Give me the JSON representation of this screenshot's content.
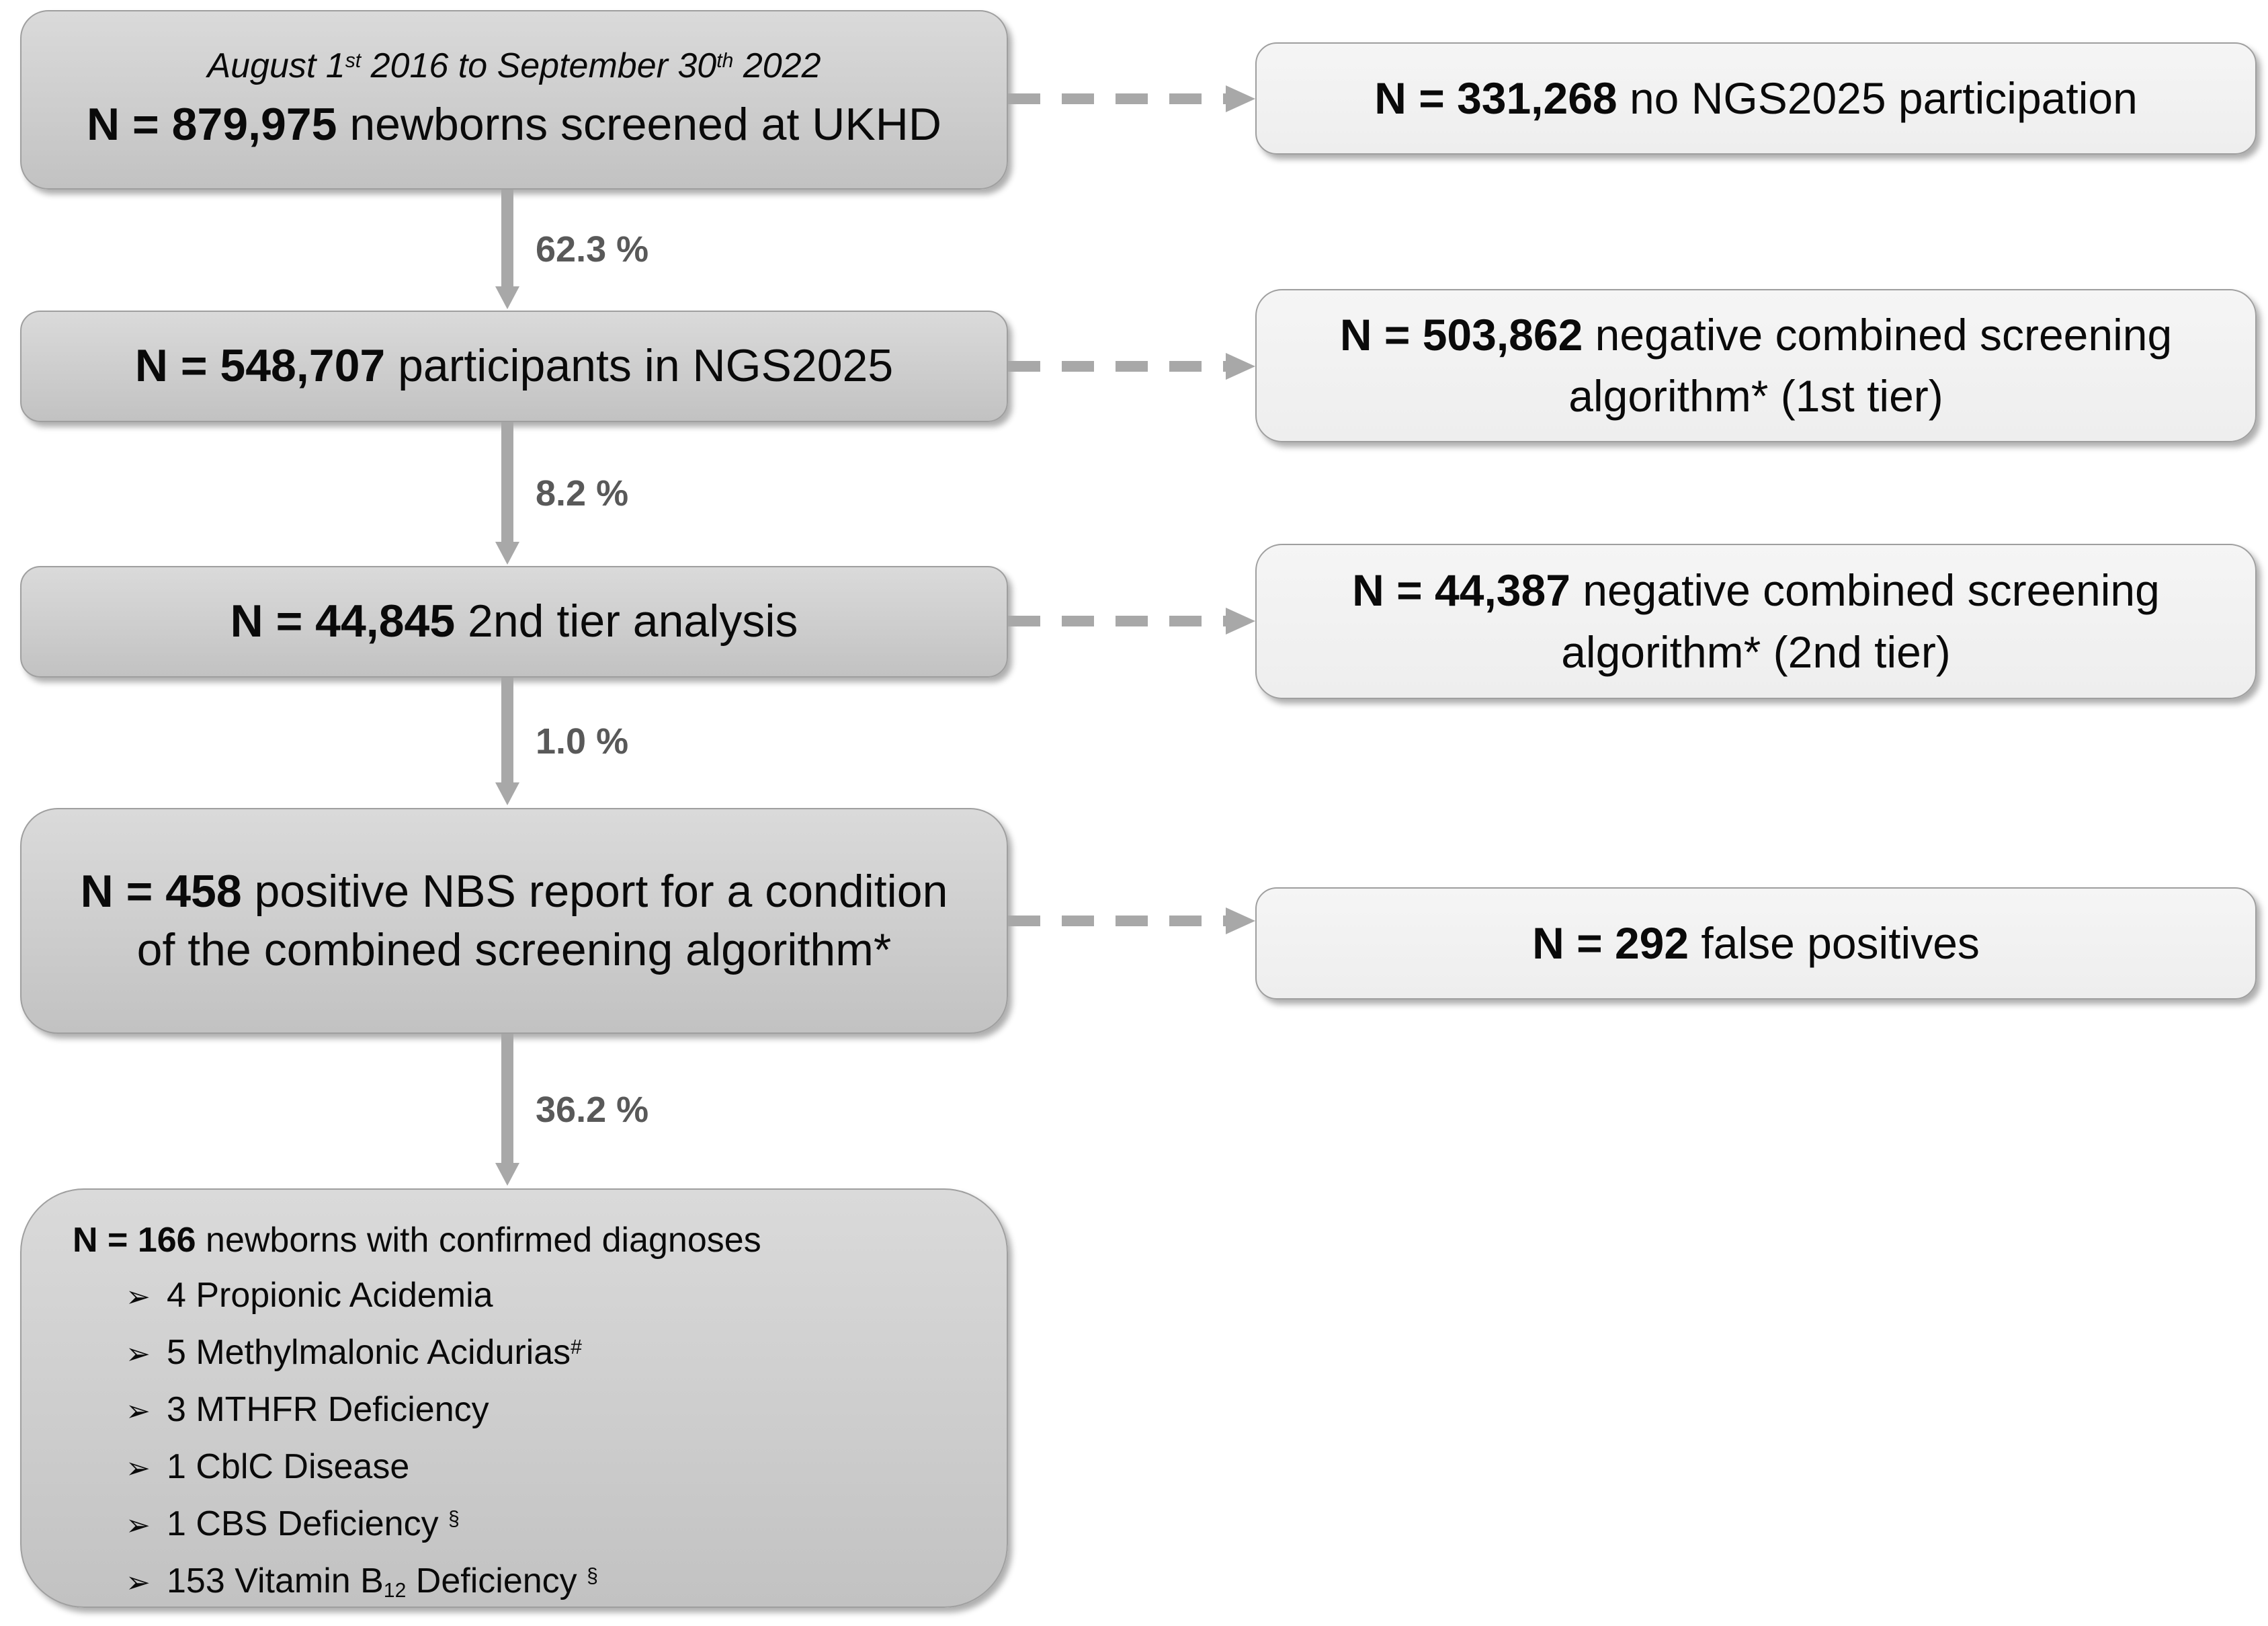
{
  "main_flow": {
    "screened": {
      "period": {
        "t1": "August 1",
        "sup1": "st",
        "t2": " 2016 to September 30",
        "sup2": "th",
        "t3": " 2022"
      },
      "n": "N = 879,975",
      "label": " newborns screened at UKHD"
    },
    "participants": {
      "n": "N = 548,707",
      "label": " participants in NGS2025"
    },
    "second_tier": {
      "n": "N = 44,845",
      "label": " 2nd tier analysis"
    },
    "positive_nbs": {
      "n": "N = 458",
      "label": " positive NBS report for a condition of the combined screening algorithm*"
    },
    "diagnoses": {
      "n": "N = 166",
      "label": " newborns with confirmed diagnoses",
      "bullet_glyph": "➢",
      "items": [
        {
          "text": "4 Propionic Acidemia"
        },
        {
          "text": "5 Methylmalonic Acidurias",
          "sup": "#"
        },
        {
          "text": "3 MTHFR Deficiency"
        },
        {
          "text": "1 CblC Disease"
        },
        {
          "text": "1 CBS Deficiency ",
          "sup": "§"
        },
        {
          "text": "153 Vitamin B",
          "sub": "12",
          "text2": " Deficiency ",
          "sup": "§"
        }
      ]
    }
  },
  "down_arrows": [
    {
      "label": "62.3 %"
    },
    {
      "label": "8.2 %"
    },
    {
      "label": "1.0 %"
    },
    {
      "label": "36.2 %"
    }
  ],
  "side_boxes": [
    {
      "n": "N = 331,268",
      "label": " no NGS2025 participation"
    },
    {
      "n": "N = 503,862",
      "label": " negative combined screening algorithm* (1st tier)"
    },
    {
      "n": "N = 44,387",
      "label": " negative combined screening algorithm* (2nd tier)"
    },
    {
      "n": "N = 292",
      "label": " false positives"
    }
  ],
  "colors": {
    "node_fill_top": "#dadada",
    "node_fill_bottom": "#c2c2c2",
    "side_fill": "#f2f2f2",
    "border": "#9f9f9f",
    "arrow": "#a8a8a8",
    "percent_text": "#595959",
    "text": "#0a0a0a",
    "background": "#ffffff"
  }
}
